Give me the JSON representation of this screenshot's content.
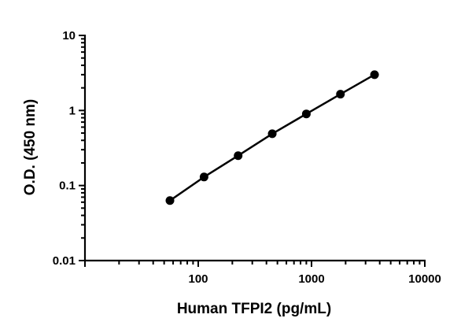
{
  "chart_data": {
    "type": "line",
    "title": "",
    "xlabel": "Human  TFPI2 (pg/mL)",
    "ylabel": "O.D. (450 nm)",
    "x_scale": "log",
    "y_scale": "log",
    "xlim": [
      10,
      10000
    ],
    "ylim": [
      0.01,
      10
    ],
    "x_ticks": [
      100,
      1000,
      10000
    ],
    "x_tick_labels": [
      "100",
      "1000",
      "10000"
    ],
    "y_ticks": [
      0.01,
      0.1,
      1,
      10
    ],
    "y_tick_labels": [
      "0.01",
      "0.1",
      "1",
      "10"
    ],
    "grid": false,
    "legend": "none",
    "series": [
      {
        "x": [
          56.25,
          112.5,
          225,
          450,
          900,
          1800,
          3600
        ],
        "y": [
          0.063,
          0.13,
          0.25,
          0.49,
          0.9,
          1.65,
          3.0
        ],
        "color": "#000000",
        "marker": "circle"
      }
    ]
  }
}
